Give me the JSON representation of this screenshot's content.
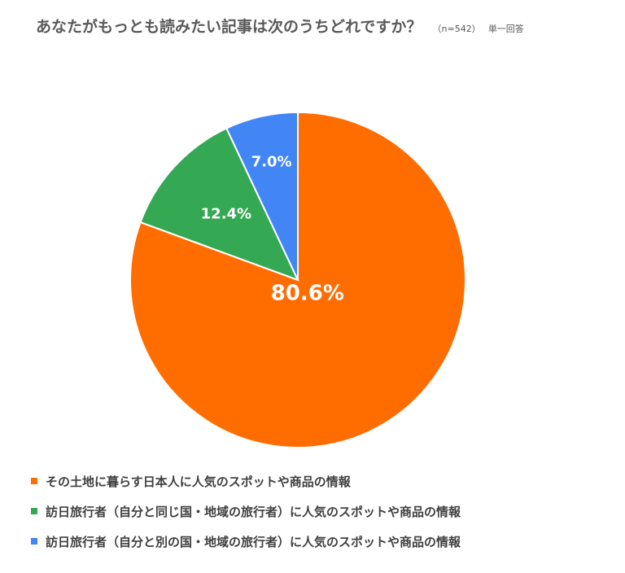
{
  "header": {
    "title": "あなたがもっとも読みたい記事は次のうちどれですか？",
    "sample_note": "（n=542）",
    "answer_type": "単一回答"
  },
  "chart_data": {
    "type": "pie",
    "title": "あなたがもっとも読みたい記事は次のうちどれですか？",
    "slices": [
      {
        "label": "その土地に暮らす日本人に人気のスポットや商品の情報",
        "value": 80.6,
        "display": "80.6%",
        "color": "#FF6D01"
      },
      {
        "label": "訪日旅行者（自分と同じ国・地域の旅行者）に人気のスポットや商品の情報",
        "value": 12.4,
        "display": "12.4%",
        "color": "#34A853"
      },
      {
        "label": "訪日旅行者（自分と別の国・地域の旅行者）に人気のスポットや商品の情報",
        "value": 7.0,
        "display": "7.0%",
        "color": "#4285F4"
      }
    ],
    "start_angle": "12 o'clock",
    "direction": "clockwise",
    "legend_position": "bottom-left"
  },
  "legend": {
    "items": [
      {
        "label": "その土地に暮らす日本人に人気のスポットや商品の情報",
        "color": "#FF6D01"
      },
      {
        "label": "訪日旅行者（自分と同じ国・地域の旅行者）に人気のスポットや商品の情報",
        "color": "#34A853"
      },
      {
        "label": "訪日旅行者（自分と別の国・地域の旅行者）に人気のスポットや商品の情報",
        "color": "#4285F4"
      }
    ]
  }
}
